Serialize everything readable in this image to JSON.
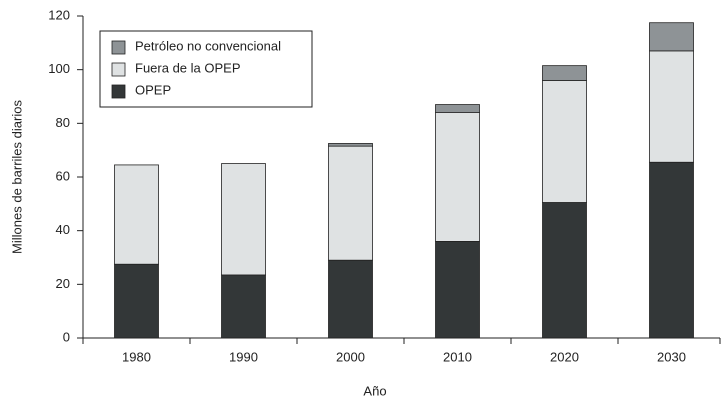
{
  "chart_data": {
    "type": "stacked_bar",
    "categories": [
      "1980",
      "1990",
      "2000",
      "2010",
      "2020",
      "2030"
    ],
    "series": [
      {
        "name": "OPEP",
        "color": "#333738",
        "values": [
          27.5,
          23.5,
          29,
          36,
          50.5,
          65.5
        ]
      },
      {
        "name": "Fuera de la OPEP",
        "color": "#dfe2e3",
        "values": [
          37,
          41.5,
          42.5,
          48,
          45.5,
          41.5
        ]
      },
      {
        "name": "Petróleo no convencional",
        "color": "#8e9396",
        "values": [
          0,
          0,
          1,
          3,
          5.5,
          10.5
        ]
      }
    ],
    "xlabel": "Año",
    "ylabel": "Millones de barriles diarios",
    "ylim": [
      0,
      120
    ],
    "yticks": [
      0,
      20,
      40,
      60,
      80,
      100,
      120
    ],
    "legend": "upper-left"
  }
}
